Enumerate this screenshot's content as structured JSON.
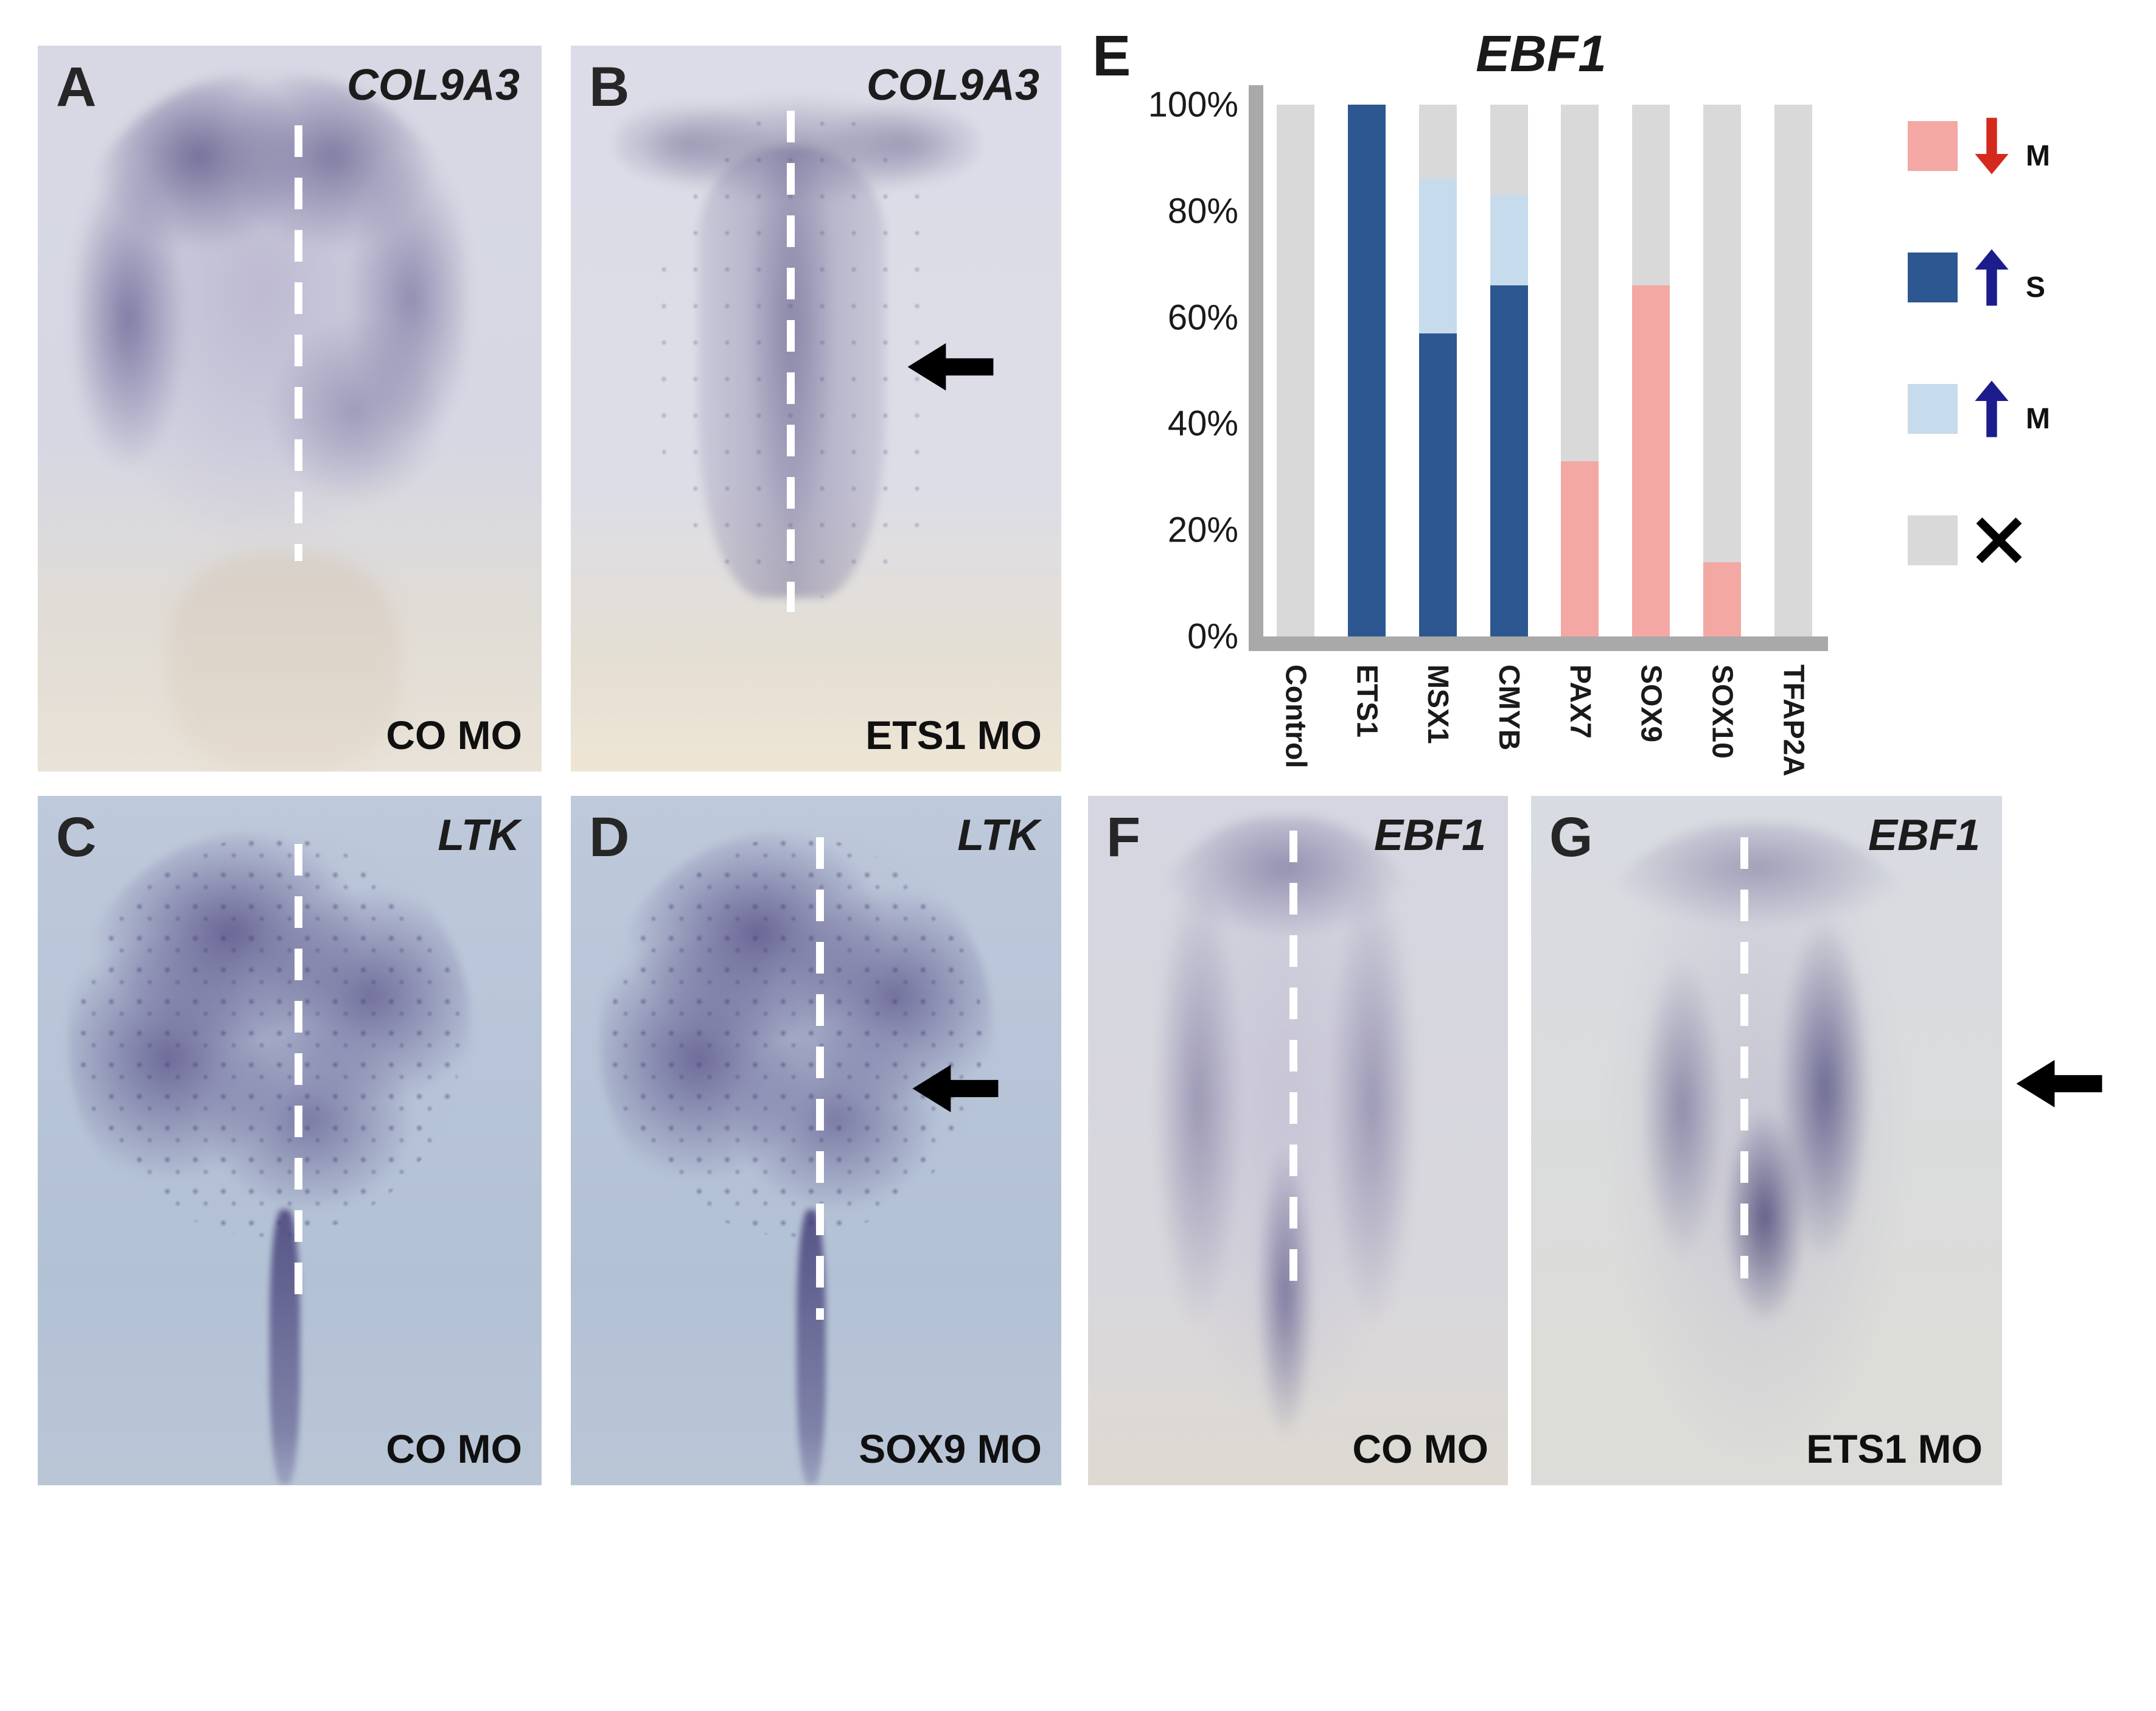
{
  "panels": {
    "A": {
      "letter": "A",
      "gene": "COL9A3",
      "treatment": "CO MO"
    },
    "B": {
      "letter": "B",
      "gene": "COL9A3",
      "treatment": "ETS1 MO"
    },
    "C": {
      "letter": "C",
      "gene": "LTK",
      "treatment": "CO MO"
    },
    "D": {
      "letter": "D",
      "gene": "LTK",
      "treatment": "SOX9 MO"
    },
    "E": {
      "letter": "E"
    },
    "F": {
      "letter": "F",
      "gene": "EBF1",
      "treatment": "CO MO"
    },
    "G": {
      "letter": "G",
      "gene": "EBF1",
      "treatment": "ETS1 MO"
    }
  },
  "chart_data": {
    "type": "bar",
    "stacked": true,
    "title": "EBF1",
    "categories": [
      "Control",
      "ETS1",
      "MSX1",
      "CMYB",
      "PAX7",
      "SOX9",
      "SOX10",
      "TFAP2A"
    ],
    "yticks": [
      "100%",
      "80%",
      "60%",
      "40%",
      "20%",
      "0%"
    ],
    "ylim": [
      0,
      100
    ],
    "grid": false,
    "legend_position": "right",
    "colors": {
      "increase-strong": "#2c5791",
      "increase-moderate": "#c6dbec",
      "decrease-moderate": "#f3a8a4",
      "no-change": "#d9d9d9"
    },
    "series": [
      {
        "name": "increase-strong",
        "values": [
          0,
          100,
          57,
          66,
          0,
          0,
          0,
          0
        ]
      },
      {
        "name": "increase-moderate",
        "values": [
          0,
          0,
          29,
          17,
          0,
          0,
          0,
          0
        ]
      },
      {
        "name": "decrease-moderate",
        "values": [
          0,
          0,
          0,
          0,
          33,
          66,
          14,
          0
        ]
      },
      {
        "name": "no-change",
        "values": [
          100,
          0,
          14,
          17,
          67,
          34,
          86,
          100
        ]
      }
    ],
    "legend": [
      {
        "swatch": "#f3a8a4",
        "icon": "down-arrow",
        "icon_color": "#d42a1e",
        "label": "M"
      },
      {
        "swatch": "#2c5791",
        "icon": "up-arrow",
        "icon_color": "#1c1c8c",
        "label": "S"
      },
      {
        "swatch": "#c6dbec",
        "icon": "up-arrow",
        "icon_color": "#1c1c8c",
        "label": "M"
      },
      {
        "swatch": "#d9d9d9",
        "icon": "cross",
        "icon_color": "#000000",
        "label": ""
      }
    ]
  }
}
